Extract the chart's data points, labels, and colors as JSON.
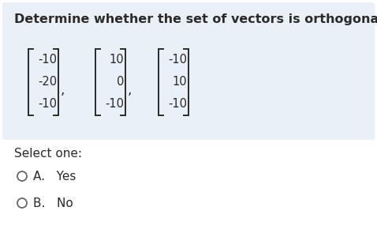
{
  "title": "Determine whether the set of vectors is orthogonal.",
  "title_fontsize": 11.5,
  "vectors": [
    [
      "-10",
      "-20",
      "-10"
    ],
    [
      "10",
      "0",
      "-10"
    ],
    [
      "-10",
      "10",
      "-10"
    ]
  ],
  "select_one_label": "Select one:",
  "option_a": "A.   Yes",
  "option_b": "B.   No",
  "bg_box_color": "#eaf0f8",
  "bg_page_color": "#ffffff",
  "text_color": "#2a2a2a",
  "bracket_color": "#2a2a2a",
  "select_color": "#2a2a2a",
  "option_color": "#2a2a2a",
  "circle_color": "#666666",
  "mat_fontsize": 10.5,
  "comma_fontsize": 12
}
